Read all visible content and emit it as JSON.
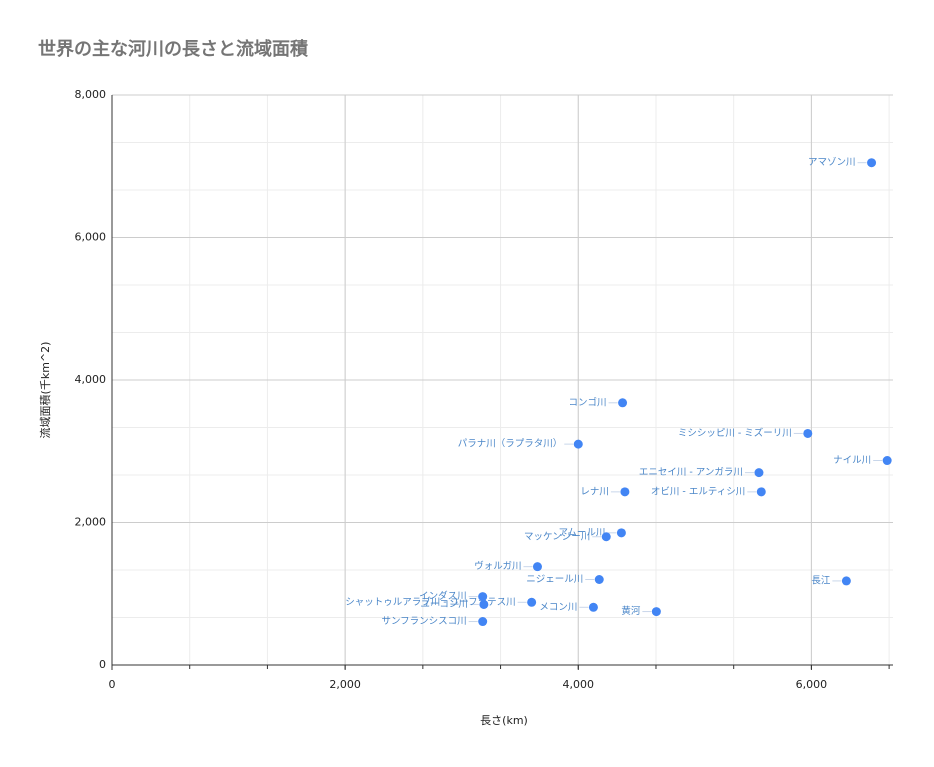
{
  "chart_data": {
    "type": "scatter",
    "title": "世界の主な河川の長さと流域面積",
    "x_label": "長さ(km)",
    "y_label": "流域面積(千km^2)",
    "series": [
      {
        "color": "#4285f4",
        "labels": [
          "アマゾン川",
          "コンゴ川",
          "ミシシッピ川 - ミズーリ川",
          "パラナ川（ラプラタ川）",
          "ナイル川",
          "エニセイ川 - アンガラ川",
          "オビ川 - エルティシ川",
          "レナ川",
          "アムール川",
          "マッケンジー川",
          "ヴォルガ川",
          "ニジェール川",
          "長江",
          "インダス川",
          "ユーコン川",
          "シャットゥルアラブ川 - ユーフラテス川",
          "メコン川",
          "黄河",
          "サンフランシスコ川"
        ],
        "x": [
          6516,
          4380,
          5969,
          4000,
          6650,
          5550,
          5570,
          4400,
          4370,
          4240,
          3650,
          4180,
          6300,
          3180,
          3190,
          3600,
          4130,
          4670,
          3180
        ],
        "values": [
          7050,
          3680,
          3250,
          3100,
          2870,
          2700,
          2430,
          2430,
          1855,
          1800,
          1380,
          1200,
          1180,
          960,
          850,
          880,
          810,
          750,
          610
        ]
      }
    ],
    "xlim": [
      0,
      6700
    ],
    "ylim": [
      0,
      8000
    ],
    "xticks": [
      0,
      {
        "value": 2000,
        "label": "2,000"
      },
      {
        "value": 4000,
        "label": "4,000"
      },
      {
        "value": 6000,
        "label": "6,000"
      }
    ],
    "yticks": [
      0,
      {
        "value": 2000,
        "label": "2,000"
      },
      {
        "value": 4000,
        "label": "4,000"
      },
      {
        "value": 6000,
        "label": "6,000"
      },
      {
        "value": 8000,
        "label": "8,000"
      }
    ],
    "grid": true
  }
}
